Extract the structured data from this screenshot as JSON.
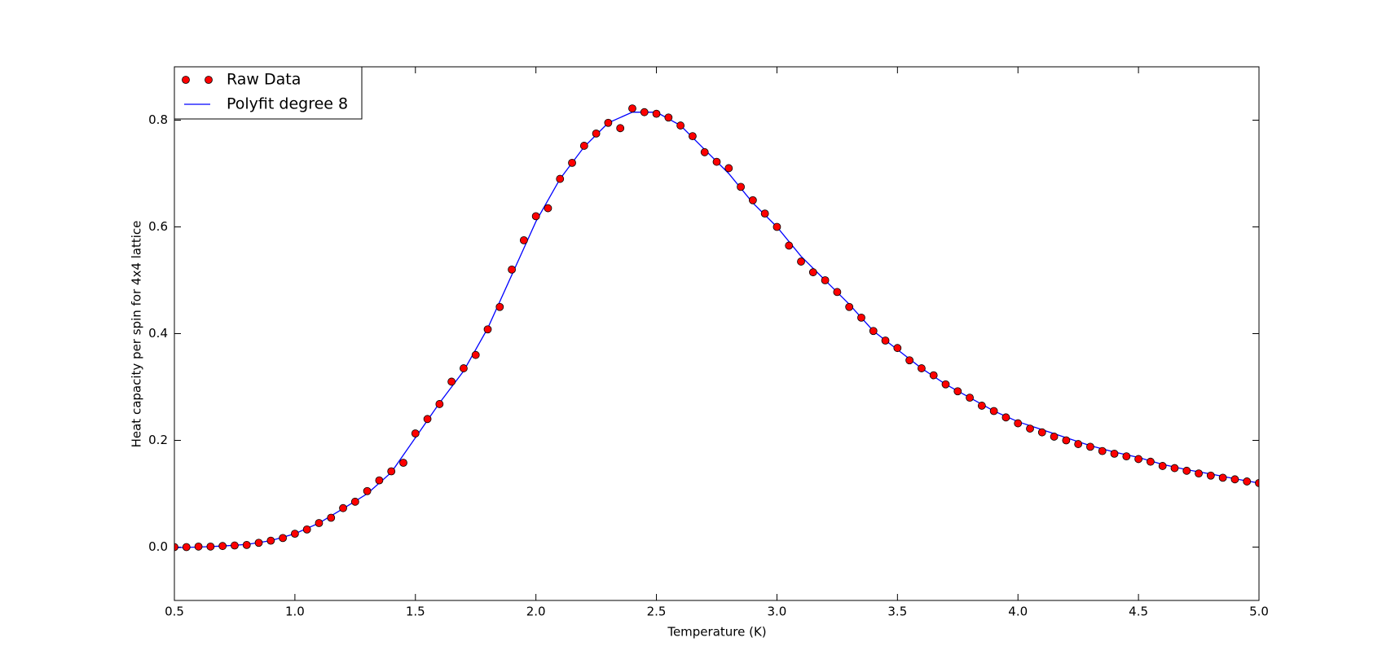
{
  "chart_data": {
    "type": "scatter",
    "xlabel": "Temperature (K)",
    "ylabel": "Heat capacity per spin for 4x4 lattice",
    "xlim": [
      0.5,
      5.0
    ],
    "ylim": [
      -0.1,
      0.9
    ],
    "xticks": [
      0.5,
      {
        "value": 1,
        "label": "1.0"
      },
      1.5,
      {
        "value": 2,
        "label": "2.0"
      },
      2.5,
      {
        "value": 3,
        "label": "3.0"
      },
      3.5,
      {
        "value": 4,
        "label": "4.0"
      },
      4.5,
      {
        "value": 5,
        "label": "5.0"
      }
    ],
    "yticks": [
      {
        "value": 0,
        "label": "0.0"
      },
      0.2,
      0.4,
      0.6,
      0.8
    ],
    "legend": "upper left",
    "series": [
      {
        "name": "Raw Data",
        "type": "scatter",
        "color": "#ff0000",
        "x": [
          0.5,
          0.55,
          0.6,
          0.65,
          0.7,
          0.75,
          0.8,
          0.85,
          0.9,
          0.95,
          1.0,
          1.05,
          1.1,
          1.15,
          1.2,
          1.25,
          1.3,
          1.35,
          1.4,
          1.45,
          1.5,
          1.55,
          1.6,
          1.65,
          1.7,
          1.75,
          1.8,
          1.85,
          1.9,
          1.95,
          2.0,
          2.05,
          2.1,
          2.15,
          2.2,
          2.25,
          2.3,
          2.35,
          2.4,
          2.45,
          2.5,
          2.55,
          2.6,
          2.65,
          2.7,
          2.75,
          2.8,
          2.85,
          2.9,
          2.95,
          3.0,
          3.05,
          3.1,
          3.15,
          3.2,
          3.25,
          3.3,
          3.35,
          3.4,
          3.45,
          3.5,
          3.55,
          3.6,
          3.65,
          3.7,
          3.75,
          3.8,
          3.85,
          3.9,
          3.95,
          4.0,
          4.05,
          4.1,
          4.15,
          4.2,
          4.25,
          4.3,
          4.35,
          4.4,
          4.45,
          4.5,
          4.55,
          4.6,
          4.65,
          4.7,
          4.75,
          4.8,
          4.85,
          4.9,
          4.95,
          5.0
        ],
        "values": [
          0.0,
          0.0,
          0.001,
          0.001,
          0.002,
          0.003,
          0.004,
          0.008,
          0.012,
          0.017,
          0.025,
          0.033,
          0.045,
          0.055,
          0.073,
          0.085,
          0.105,
          0.125,
          0.142,
          0.158,
          0.213,
          0.24,
          0.268,
          0.31,
          0.335,
          0.36,
          0.408,
          0.45,
          0.52,
          0.575,
          0.62,
          0.635,
          0.69,
          0.72,
          0.752,
          0.775,
          0.795,
          0.785,
          0.822,
          0.815,
          0.812,
          0.805,
          0.79,
          0.77,
          0.74,
          0.722,
          0.71,
          0.675,
          0.65,
          0.625,
          0.6,
          0.565,
          0.535,
          0.515,
          0.5,
          0.478,
          0.45,
          0.43,
          0.405,
          0.387,
          0.373,
          0.35,
          0.335,
          0.322,
          0.305,
          0.292,
          0.28,
          0.265,
          0.255,
          0.243,
          0.232,
          0.222,
          0.215,
          0.207,
          0.2,
          0.193,
          0.188,
          0.18,
          0.175,
          0.17,
          0.165,
          0.16,
          0.152,
          0.148,
          0.143,
          0.138,
          0.134,
          0.13,
          0.127,
          0.123,
          0.12
        ]
      },
      {
        "name": "Polyfit degree 8",
        "type": "line",
        "color": "#0000ff",
        "x": [
          0.5,
          0.6,
          0.7,
          0.8,
          0.9,
          1.0,
          1.1,
          1.2,
          1.3,
          1.4,
          1.5,
          1.6,
          1.7,
          1.8,
          1.9,
          2.0,
          2.1,
          2.2,
          2.3,
          2.4,
          2.5,
          2.6,
          2.7,
          2.8,
          2.9,
          3.0,
          3.1,
          3.2,
          3.3,
          3.4,
          3.5,
          3.6,
          3.7,
          3.8,
          3.9,
          4.0,
          4.1,
          4.2,
          4.3,
          4.4,
          4.5,
          4.6,
          4.7,
          4.8,
          4.9,
          5.0
        ],
        "values": [
          -0.001,
          0.0,
          0.002,
          0.005,
          0.012,
          0.025,
          0.045,
          0.072,
          0.1,
          0.14,
          0.205,
          0.27,
          0.33,
          0.41,
          0.51,
          0.61,
          0.69,
          0.75,
          0.795,
          0.815,
          0.815,
          0.79,
          0.745,
          0.7,
          0.645,
          0.6,
          0.545,
          0.5,
          0.455,
          0.405,
          0.37,
          0.335,
          0.305,
          0.28,
          0.255,
          0.235,
          0.22,
          0.205,
          0.19,
          0.178,
          0.168,
          0.155,
          0.145,
          0.137,
          0.128,
          0.12
        ]
      }
    ]
  }
}
